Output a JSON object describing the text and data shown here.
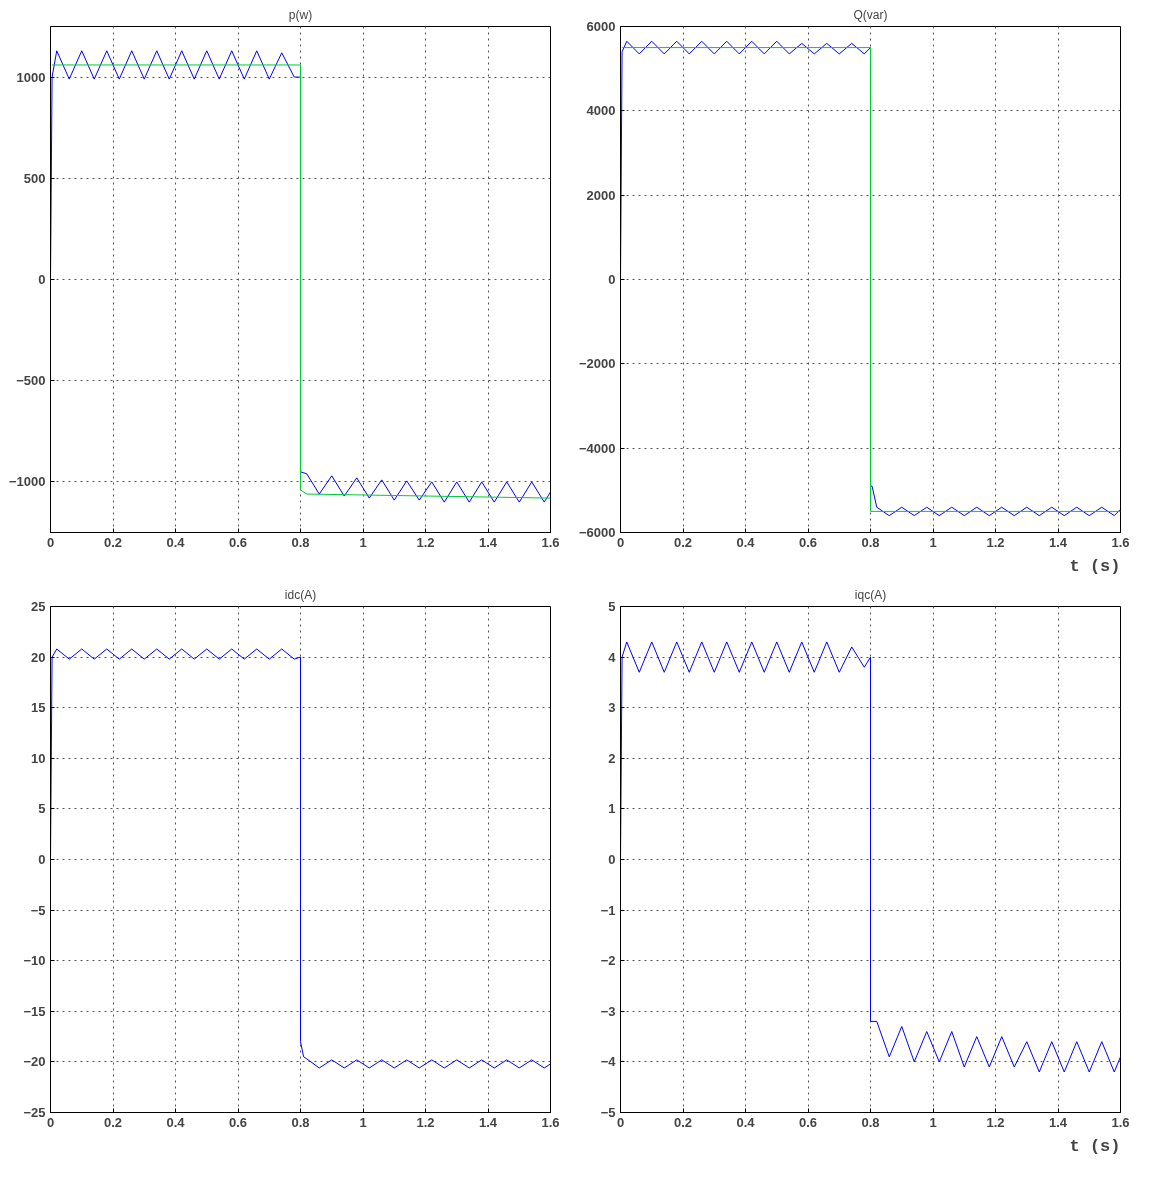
{
  "chart_data": [
    {
      "type": "line",
      "title": "p(w)",
      "xlim": [
        0,
        1.6
      ],
      "xticks": [
        0,
        0.2,
        0.4,
        0.6,
        0.8,
        1,
        1.2,
        1.4,
        1.6
      ],
      "ylim": [
        -1250,
        1250
      ],
      "yticks": [
        -1000,
        -500,
        0,
        500,
        1000
      ],
      "grid": true,
      "line_style": "solid",
      "series": [
        {
          "color": "#0000ff",
          "x": [
            0,
            0.005,
            0.02,
            0.06,
            0.1,
            0.14,
            0.18,
            0.22,
            0.26,
            0.3,
            0.34,
            0.38,
            0.42,
            0.46,
            0.5,
            0.54,
            0.58,
            0.62,
            0.66,
            0.7,
            0.74,
            0.78,
            0.8,
            0.8,
            0.82,
            0.86,
            0.9,
            0.94,
            0.98,
            1.02,
            1.06,
            1.1,
            1.14,
            1.18,
            1.22,
            1.26,
            1.3,
            1.34,
            1.38,
            1.42,
            1.46,
            1.5,
            1.54,
            1.58,
            1.6
          ],
          "values": [
            0,
            1000,
            1130,
            990,
            1130,
            990,
            1130,
            990,
            1130,
            990,
            1130,
            990,
            1130,
            990,
            1130,
            990,
            1130,
            990,
            1130,
            990,
            1120,
            1000,
            1000,
            -950,
            -960,
            -1060,
            -970,
            -1070,
            -980,
            -1080,
            -990,
            -1090,
            -995,
            -1090,
            -1000,
            -1100,
            -1000,
            -1100,
            -1000,
            -1100,
            -1000,
            -1100,
            -1000,
            -1100,
            -1050
          ]
        },
        {
          "color": "#00cc33",
          "x": [
            0.005,
            0.8,
            0.8,
            0.82,
            1.6
          ],
          "values": [
            1060,
            1060,
            -1040,
            -1060,
            -1080
          ]
        }
      ]
    },
    {
      "type": "line",
      "title": "Q(var)",
      "xlabel": "t (s)",
      "xlim": [
        0,
        1.6
      ],
      "xticks": [
        0,
        0.2,
        0.4,
        0.6,
        0.8,
        1,
        1.2,
        1.4,
        1.6
      ],
      "ylim": [
        -6000,
        6000
      ],
      "yticks": [
        -6000,
        -4000,
        -2000,
        0,
        2000,
        4000,
        6000
      ],
      "grid": true,
      "line_style": "solid",
      "series": [
        {
          "color": "#0000ff",
          "x": [
            0,
            0.005,
            0.02,
            0.06,
            0.1,
            0.14,
            0.18,
            0.22,
            0.26,
            0.3,
            0.34,
            0.38,
            0.42,
            0.46,
            0.5,
            0.54,
            0.58,
            0.62,
            0.66,
            0.7,
            0.74,
            0.78,
            0.8,
            0.8,
            0.805,
            0.82,
            0.86,
            0.9,
            0.94,
            0.98,
            1.02,
            1.06,
            1.1,
            1.14,
            1.18,
            1.22,
            1.26,
            1.3,
            1.34,
            1.38,
            1.42,
            1.46,
            1.5,
            1.54,
            1.58,
            1.6
          ],
          "values": [
            0,
            5400,
            5650,
            5350,
            5650,
            5350,
            5650,
            5350,
            5650,
            5350,
            5650,
            5350,
            5650,
            5350,
            5650,
            5350,
            5600,
            5350,
            5600,
            5350,
            5600,
            5350,
            5500,
            -4900,
            -4900,
            -5400,
            -5600,
            -5400,
            -5600,
            -5400,
            -5600,
            -5400,
            -5600,
            -5400,
            -5600,
            -5400,
            -5600,
            -5400,
            -5600,
            -5400,
            -5600,
            -5400,
            -5600,
            -5400,
            -5600,
            -5450
          ]
        },
        {
          "color": "#00cc33",
          "x": [
            0.005,
            0.8,
            0.8,
            1.6
          ],
          "values": [
            5500,
            5500,
            -5500,
            -5500
          ]
        }
      ]
    },
    {
      "type": "line",
      "title": "idc(A)",
      "xlim": [
        0,
        1.6
      ],
      "xticks": [
        0,
        0.2,
        0.4,
        0.6,
        0.8,
        1,
        1.2,
        1.4,
        1.6
      ],
      "ylim": [
        -25,
        25
      ],
      "yticks": [
        -25,
        -20,
        -15,
        -10,
        -5,
        0,
        5,
        10,
        15,
        20,
        25
      ],
      "grid": true,
      "line_style": "solid",
      "series": [
        {
          "color": "#0000ff",
          "x": [
            0,
            0.005,
            0.02,
            0.06,
            0.1,
            0.14,
            0.18,
            0.22,
            0.26,
            0.3,
            0.34,
            0.38,
            0.42,
            0.46,
            0.5,
            0.54,
            0.58,
            0.62,
            0.66,
            0.7,
            0.74,
            0.78,
            0.8,
            0.8,
            0.81,
            0.82,
            0.86,
            0.9,
            0.94,
            0.98,
            1.02,
            1.06,
            1.1,
            1.14,
            1.18,
            1.22,
            1.26,
            1.3,
            1.34,
            1.38,
            1.42,
            1.46,
            1.5,
            1.54,
            1.58,
            1.6
          ],
          "values": [
            0,
            20,
            20.8,
            19.8,
            20.8,
            19.8,
            20.8,
            19.8,
            20.8,
            19.8,
            20.8,
            19.8,
            20.8,
            19.8,
            20.8,
            19.8,
            20.8,
            19.8,
            20.8,
            19.8,
            20.8,
            19.8,
            20,
            -18,
            -19.5,
            -19.7,
            -20.6,
            -19.8,
            -20.6,
            -19.8,
            -20.6,
            -19.8,
            -20.6,
            -19.8,
            -20.6,
            -19.8,
            -20.6,
            -19.8,
            -20.6,
            -19.8,
            -20.6,
            -19.8,
            -20.6,
            -19.8,
            -20.6,
            -20.2
          ]
        }
      ]
    },
    {
      "type": "line",
      "title": "iqc(A)",
      "xlabel": "t (s)",
      "xlim": [
        0,
        1.6
      ],
      "xticks": [
        0,
        0.2,
        0.4,
        0.6,
        0.8,
        1,
        1.2,
        1.4,
        1.6
      ],
      "ylim": [
        -5,
        5
      ],
      "yticks": [
        -5,
        -4,
        -3,
        -2,
        -1,
        0,
        1,
        2,
        3,
        4,
        5
      ],
      "grid": true,
      "line_style": "solid",
      "series": [
        {
          "color": "#0000ff",
          "x": [
            0,
            0.005,
            0.02,
            0.06,
            0.1,
            0.14,
            0.18,
            0.22,
            0.26,
            0.3,
            0.34,
            0.38,
            0.42,
            0.46,
            0.5,
            0.54,
            0.58,
            0.62,
            0.66,
            0.7,
            0.74,
            0.78,
            0.8,
            0.8,
            0.82,
            0.86,
            0.9,
            0.94,
            0.98,
            1.02,
            1.06,
            1.1,
            1.14,
            1.18,
            1.22,
            1.26,
            1.3,
            1.34,
            1.38,
            1.42,
            1.46,
            1.5,
            1.54,
            1.58,
            1.6
          ],
          "values": [
            0,
            4,
            4.3,
            3.7,
            4.3,
            3.7,
            4.3,
            3.7,
            4.3,
            3.7,
            4.3,
            3.7,
            4.3,
            3.7,
            4.3,
            3.7,
            4.3,
            3.7,
            4.3,
            3.7,
            4.2,
            3.8,
            4,
            -3.2,
            -3.2,
            -3.9,
            -3.3,
            -4,
            -3.4,
            -4,
            -3.4,
            -4.1,
            -3.5,
            -4.1,
            -3.5,
            -4.1,
            -3.6,
            -4.2,
            -3.6,
            -4.2,
            -3.6,
            -4.2,
            -3.6,
            -4.2,
            -3.9
          ]
        }
      ]
    }
  ]
}
